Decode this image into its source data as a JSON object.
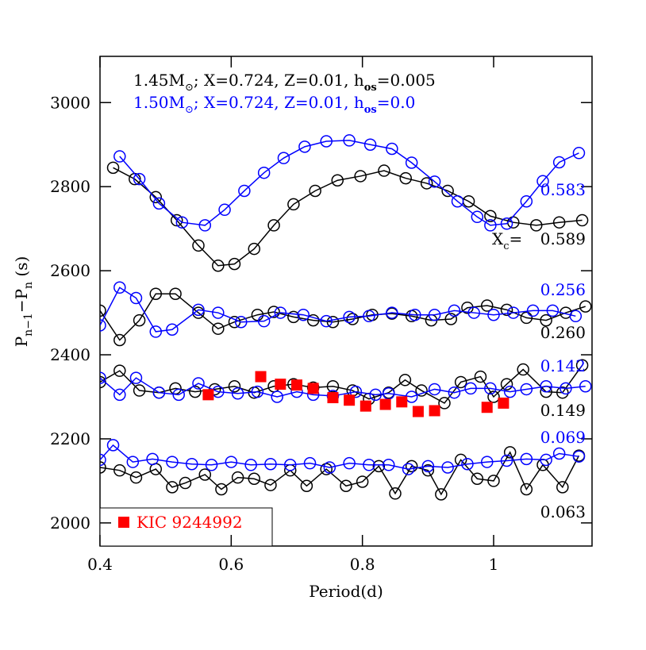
{
  "chart_data": {
    "type": "line",
    "header": [
      {
        "parts": [
          "1.45M",
          "⊙",
          "; X=0.724, Z=0.01, h",
          "os",
          "=0.005"
        ],
        "color": "#000000"
      },
      {
        "parts": [
          "1.50M",
          "⊙",
          "; X=0.724, Z=0.01, h",
          "os",
          "=0.0"
        ],
        "color": "#0000ff"
      }
    ],
    "x_label": "Period(d)",
    "y_label": [
      "P",
      "n−1",
      "−P",
      "n",
      " (s)"
    ],
    "xc_label": [
      "X",
      "c",
      "="
    ],
    "xlim": [
      0.4,
      1.15
    ],
    "ylim": [
      1945,
      3110
    ],
    "xticks": [
      0.4,
      0.6,
      0.8,
      1
    ],
    "yticks": [
      2000,
      2200,
      2400,
      2600,
      2800,
      3000
    ],
    "series": [
      {
        "name": "0.589",
        "color": "#000000",
        "x": [
          0.42,
          0.453,
          0.485,
          0.517,
          0.55,
          0.58,
          0.605,
          0.635,
          0.665,
          0.695,
          0.728,
          0.762,
          0.797,
          0.833,
          0.866,
          0.898,
          0.93,
          0.962,
          0.995,
          1.03,
          1.065,
          1.1,
          1.135
        ],
        "values": [
          2845,
          2818,
          2775,
          2720,
          2660,
          2612,
          2616,
          2652,
          2708,
          2758,
          2790,
          2815,
          2825,
          2838,
          2820,
          2808,
          2790,
          2765,
          2730,
          2715,
          2708,
          2715,
          2720
        ]
      },
      {
        "name": "0.583",
        "color": "#0000ff",
        "x": [
          0.43,
          0.46,
          0.49,
          0.525,
          0.56,
          0.59,
          0.62,
          0.65,
          0.68,
          0.712,
          0.745,
          0.78,
          0.812,
          0.845,
          0.875,
          0.91,
          0.945,
          0.975,
          0.995,
          1.02,
          1.05,
          1.075,
          1.1,
          1.13
        ],
        "values": [
          2872,
          2818,
          2760,
          2715,
          2708,
          2745,
          2790,
          2833,
          2868,
          2895,
          2908,
          2910,
          2900,
          2890,
          2857,
          2812,
          2765,
          2728,
          2708,
          2712,
          2765,
          2813,
          2858,
          2880
        ]
      },
      {
        "name": "0.260",
        "color": "#000000",
        "x": [
          0.4,
          0.43,
          0.46,
          0.485,
          0.515,
          0.55,
          0.58,
          0.605,
          0.64,
          0.665,
          0.695,
          0.725,
          0.755,
          0.785,
          0.815,
          0.845,
          0.875,
          0.905,
          0.935,
          0.96,
          0.99,
          1.02,
          1.05,
          1.08,
          1.11,
          1.14
        ],
        "values": [
          2505,
          2435,
          2482,
          2545,
          2545,
          2500,
          2462,
          2478,
          2495,
          2502,
          2490,
          2482,
          2478,
          2485,
          2495,
          2498,
          2492,
          2482,
          2485,
          2512,
          2517,
          2507,
          2488,
          2482,
          2500,
          2515
        ]
      },
      {
        "name": "0.256",
        "color": "#0000ff",
        "x": [
          0.4,
          0.43,
          0.455,
          0.485,
          0.51,
          0.55,
          0.58,
          0.615,
          0.65,
          0.675,
          0.71,
          0.745,
          0.78,
          0.81,
          0.845,
          0.88,
          0.91,
          0.94,
          0.97,
          1.0,
          1.03,
          1.06,
          1.09,
          1.125
        ],
        "values": [
          2470,
          2560,
          2535,
          2455,
          2460,
          2507,
          2500,
          2478,
          2480,
          2500,
          2495,
          2480,
          2490,
          2492,
          2500,
          2495,
          2495,
          2505,
          2500,
          2495,
          2500,
          2505,
          2505,
          2492
        ]
      },
      {
        "name": "0.149",
        "color": "#000000",
        "x": [
          0.4,
          0.43,
          0.46,
          0.49,
          0.515,
          0.545,
          0.575,
          0.605,
          0.635,
          0.665,
          0.695,
          0.725,
          0.755,
          0.785,
          0.81,
          0.84,
          0.865,
          0.89,
          0.925,
          0.95,
          0.98,
          1.0,
          1.02,
          1.045,
          1.08,
          1.105,
          1.135
        ],
        "values": [
          2335,
          2362,
          2315,
          2310,
          2320,
          2312,
          2318,
          2325,
          2310,
          2325,
          2330,
          2322,
          2325,
          2315,
          2295,
          2310,
          2340,
          2315,
          2285,
          2335,
          2348,
          2300,
          2330,
          2365,
          2312,
          2310,
          2375
        ]
      },
      {
        "name": "0.142",
        "color": "#0000ff",
        "x": [
          0.4,
          0.43,
          0.455,
          0.49,
          0.52,
          0.55,
          0.58,
          0.61,
          0.64,
          0.67,
          0.7,
          0.725,
          0.755,
          0.79,
          0.82,
          0.84,
          0.875,
          0.91,
          0.94,
          0.965,
          0.995,
          1.025,
          1.05,
          1.08,
          1.11,
          1.14
        ],
        "values": [
          2345,
          2305,
          2345,
          2310,
          2305,
          2332,
          2312,
          2308,
          2312,
          2300,
          2312,
          2305,
          2302,
          2312,
          2305,
          2308,
          2300,
          2318,
          2310,
          2320,
          2320,
          2312,
          2318,
          2325,
          2320,
          2325
        ]
      },
      {
        "name": "0.063",
        "color": "#000000",
        "x": [
          0.4,
          0.43,
          0.455,
          0.485,
          0.51,
          0.53,
          0.56,
          0.585,
          0.61,
          0.635,
          0.66,
          0.69,
          0.715,
          0.745,
          0.775,
          0.8,
          0.825,
          0.85,
          0.875,
          0.9,
          0.92,
          0.95,
          0.975,
          1.0,
          1.025,
          1.05,
          1.075,
          1.105,
          1.13
        ],
        "values": [
          2132,
          2125,
          2108,
          2128,
          2085,
          2095,
          2115,
          2080,
          2108,
          2105,
          2090,
          2125,
          2088,
          2128,
          2088,
          2098,
          2135,
          2070,
          2135,
          2125,
          2068,
          2150,
          2105,
          2100,
          2168,
          2080,
          2138,
          2085,
          2160
        ]
      },
      {
        "name": "0.069",
        "color": "#0000ff",
        "x": [
          0.4,
          0.42,
          0.45,
          0.48,
          0.51,
          0.54,
          0.57,
          0.6,
          0.63,
          0.66,
          0.69,
          0.72,
          0.75,
          0.78,
          0.81,
          0.84,
          0.87,
          0.9,
          0.93,
          0.96,
          0.99,
          1.02,
          1.05,
          1.08,
          1.1,
          1.13
        ],
        "values": [
          2150,
          2185,
          2145,
          2152,
          2145,
          2140,
          2138,
          2145,
          2138,
          2140,
          2138,
          2142,
          2132,
          2142,
          2138,
          2138,
          2128,
          2135,
          2132,
          2140,
          2145,
          2148,
          2152,
          2150,
          2165,
          2158
        ]
      }
    ],
    "observed": {
      "name": "KIC 9244992",
      "color": "#ff0000",
      "x": [
        0.565,
        0.645,
        0.675,
        0.7,
        0.725,
        0.755,
        0.78,
        0.805,
        0.835,
        0.86,
        0.885,
        0.91,
        0.99,
        1.015
      ],
      "values": [
        2305,
        2348,
        2330,
        2328,
        2320,
        2298,
        2292,
        2278,
        2282,
        2288,
        2265,
        2267,
        2275,
        2285
      ]
    }
  }
}
